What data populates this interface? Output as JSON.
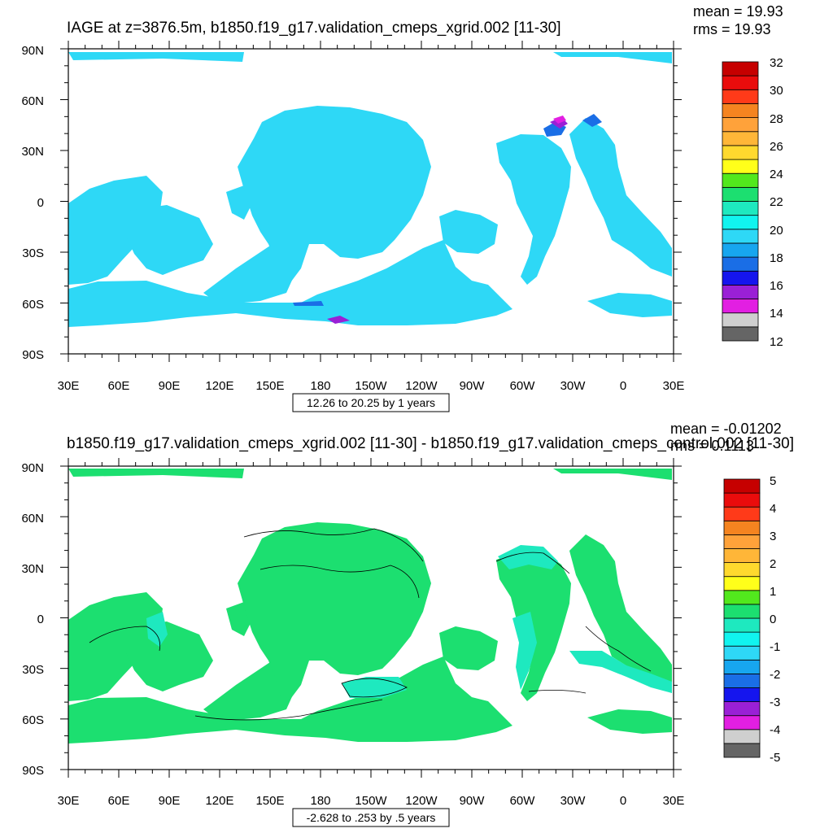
{
  "chart_data": [
    {
      "type": "heatmap",
      "title": "IAGE at z=3876.5m, b1850.f19_g17.validation_cmeps_xgrid.002 [11-30]",
      "stats": {
        "mean": "mean = 19.93",
        "rms": "rms = 19.93"
      },
      "contour_info": "12.26 to 20.25 by 1 years",
      "x_ticks": [
        "30E",
        "60E",
        "90E",
        "120E",
        "150E",
        "180",
        "150W",
        "120W",
        "90W",
        "60W",
        "30W",
        "0",
        "30E"
      ],
      "y_ticks": [
        "90N",
        "60N",
        "30N",
        "0",
        "30S",
        "60S",
        "90S"
      ],
      "x_range_deg_east": [
        30,
        390
      ],
      "y_range_deg": [
        90,
        -90
      ],
      "grid": false,
      "legend": "right",
      "colorbar": {
        "colors": [
          "#656565",
          "#cfcfcf",
          "#e21fe2",
          "#9a20d6",
          "#1515ee",
          "#1a6ee6",
          "#17a6ef",
          "#2ed8f6",
          "#11f4ef",
          "#1ee9bf",
          "#1cdf70",
          "#52e81d",
          "#ffff1a",
          "#ffd92e",
          "#ffb638",
          "#ffa23a",
          "#f58420",
          "#ff3a19",
          "#ea0c0c",
          "#c60000"
        ],
        "labels": [
          "12",
          "14",
          "16",
          "18",
          "20",
          "22",
          "24",
          "26",
          "28",
          "30",
          "32"
        ]
      },
      "fill_color": "#2ed8f6",
      "accent_blue": "#1a6ee6",
      "accent_purple": "#9a20d6",
      "accent_magenta": "#e21fe2"
    },
    {
      "type": "heatmap",
      "title": "b1850.f19_g17.validation_cmeps_xgrid.002 [11-30] - b1850.f19_g17.validation_cmeps_control.002 [11-30]",
      "stats": {
        "mean": "mean = -0.01202",
        "rms": "rms = 0.1113"
      },
      "contour_info": "-2.628 to .253 by .5 years",
      "x_ticks": [
        "30E",
        "60E",
        "90E",
        "120E",
        "150E",
        "180",
        "150W",
        "120W",
        "90W",
        "60W",
        "30W",
        "0",
        "30E"
      ],
      "y_ticks": [
        "90N",
        "60N",
        "30N",
        "0",
        "30S",
        "60S",
        "90S"
      ],
      "x_range_deg_east": [
        30,
        390
      ],
      "y_range_deg": [
        90,
        -90
      ],
      "grid": false,
      "legend": "right",
      "colorbar": {
        "colors": [
          "#656565",
          "#cfcfcf",
          "#e21fe2",
          "#9a20d6",
          "#1515ee",
          "#1a6ee6",
          "#17a6ef",
          "#2ed8f6",
          "#11f4ef",
          "#1ee9bf",
          "#1cdf70",
          "#52e81d",
          "#ffff1a",
          "#ffd92e",
          "#ffb638",
          "#ffa23a",
          "#f58420",
          "#ff3a19",
          "#ea0c0c",
          "#c60000"
        ],
        "labels": [
          "-5",
          "-4",
          "-3",
          "-2",
          "-1",
          "0",
          "1",
          "2",
          "3",
          "4",
          "5"
        ]
      },
      "fill_color": "#1cdf70",
      "secondary_fill": "#1ee9bf"
    }
  ]
}
